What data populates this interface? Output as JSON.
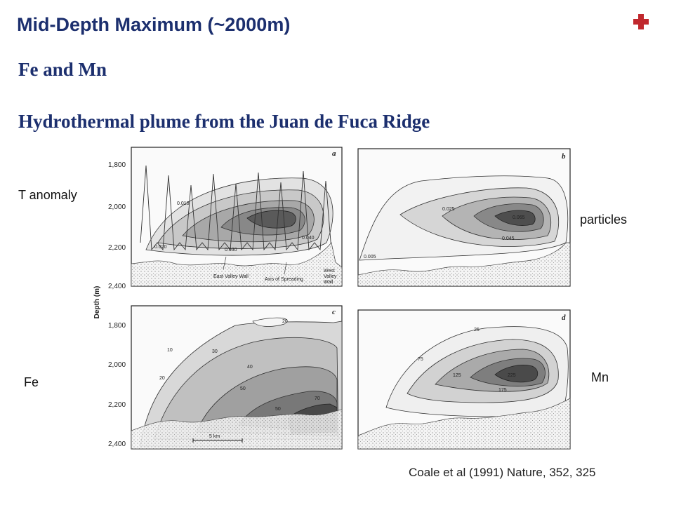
{
  "slide": {
    "title": "Mid-Depth Maximum (~2000m)",
    "subtitle1": "Fe and Mn",
    "subtitle2": "Hydrothermal plume from the Juan de Fuca Ridge",
    "citation": "Coale et al (1991) Nature, 352, 325",
    "accent_color": "#c0282d",
    "title_color": "#1c2f6e",
    "icon": "plus-icon"
  },
  "labels": {
    "t_anomaly": "T anomaly",
    "particles": "particles",
    "fe": "Fe",
    "mn": "Mn"
  },
  "figure": {
    "y_axis_label": "Depth (m)",
    "depth_ticks": [
      "1,800",
      "2,000",
      "2,200",
      "2,400"
    ],
    "panels": {
      "a": {
        "letter": "a",
        "contour_labels": [
          "0.010",
          "0.020",
          "0.030",
          "0.040"
        ],
        "annotations": [
          "East Valley Wall",
          "Axis of Spreading",
          "West",
          "Valley",
          "Wall"
        ]
      },
      "b": {
        "letter": "b",
        "contour_labels": [
          "0.025",
          "0.065",
          "0.045",
          "0.005"
        ]
      },
      "c": {
        "letter": "c",
        "contour_labels": [
          "20",
          "10",
          "30",
          "20",
          "40",
          "50",
          "70",
          "50"
        ],
        "scale_bar": "5 km"
      },
      "d": {
        "letter": "d",
        "contour_labels": [
          "25",
          "75",
          "125",
          "225",
          "175"
        ]
      }
    }
  }
}
